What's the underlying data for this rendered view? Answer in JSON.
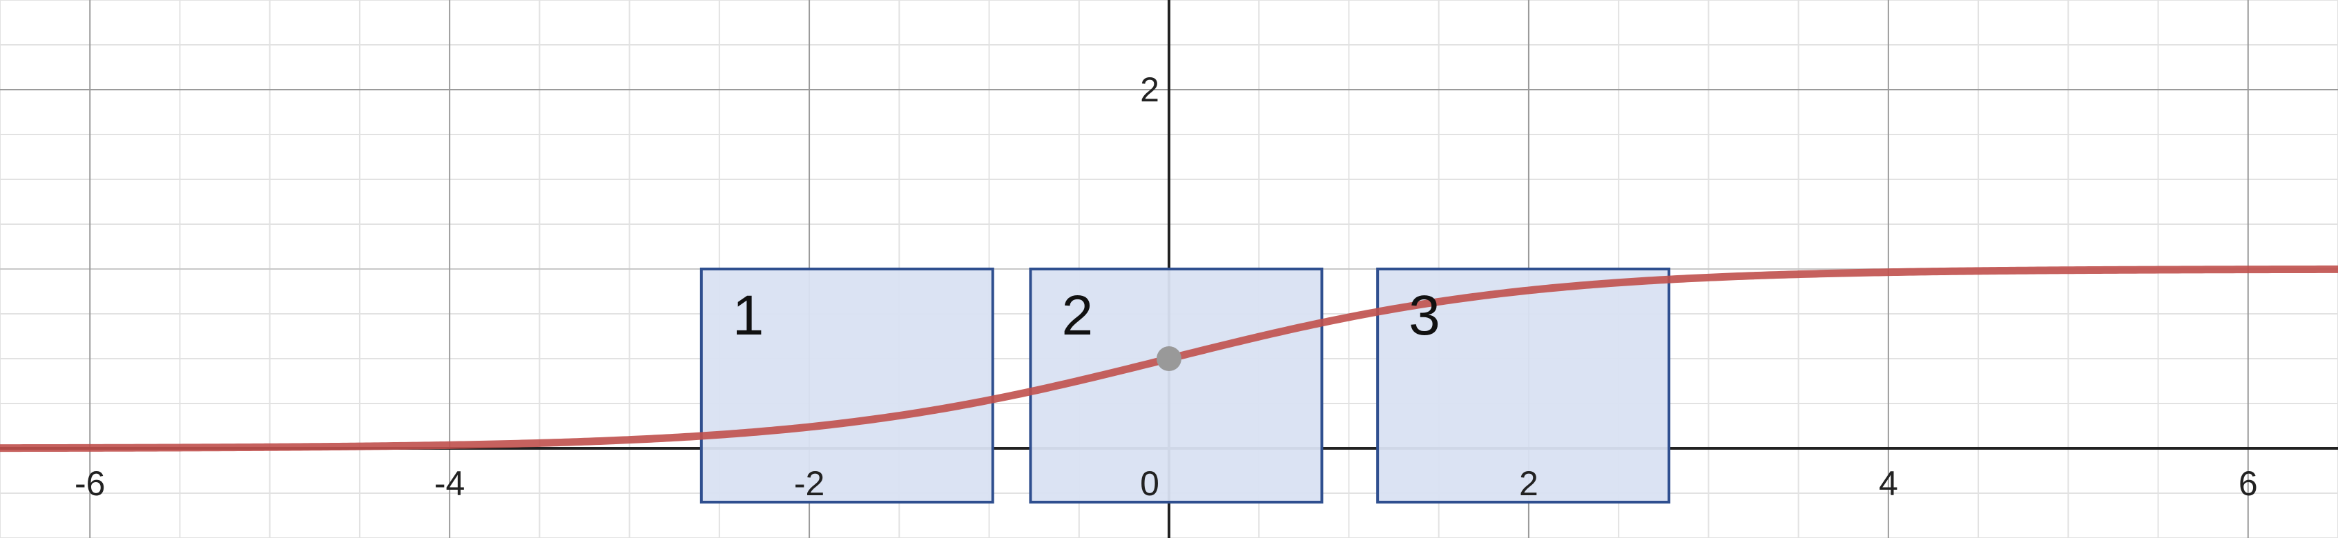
{
  "chart_data": {
    "type": "line",
    "title": "",
    "xlabel": "",
    "ylabel": "",
    "xlim": [
      -6.5,
      6.5
    ],
    "ylim": [
      -0.5,
      2.5
    ],
    "grid": true,
    "x_ticks": [
      -6,
      -4,
      -2,
      0,
      2,
      4,
      6
    ],
    "x_tick_labels": [
      "-6",
      "-4",
      "-2",
      "0",
      "2",
      "4",
      "6"
    ],
    "y_ticks": [
      2
    ],
    "y_tick_labels": [
      "2"
    ],
    "curve": {
      "description_values": "logistic curve y = 1/(1+e^-x)",
      "x": [
        -6.5,
        -6,
        -5,
        -4,
        -3,
        -2.5,
        -2,
        -1.5,
        -1,
        -0.5,
        0,
        0.5,
        1,
        1.5,
        2,
        2.5,
        3,
        4,
        5,
        6,
        6.5
      ],
      "y": [
        0.0015,
        0.0025,
        0.0067,
        0.018,
        0.047,
        0.076,
        0.119,
        0.182,
        0.269,
        0.378,
        0.5,
        0.622,
        0.731,
        0.818,
        0.881,
        0.924,
        0.953,
        0.982,
        0.993,
        0.9975,
        0.9985
      ],
      "color": "#c0504d"
    },
    "point": {
      "x": 0,
      "y": 0.5,
      "color": "#999999"
    },
    "boxes": [
      {
        "label": "1",
        "x0": -2.6,
        "x1": -0.98,
        "y0": -0.3,
        "y1": 1.0
      },
      {
        "label": "2",
        "x0": -0.77,
        "x1": 0.85,
        "y0": -0.3,
        "y1": 1.0
      },
      {
        "label": "3",
        "x0": 1.16,
        "x1": 2.78,
        "y0": -0.3,
        "y1": 1.0
      }
    ],
    "box_fill": "#d9e1f2",
    "box_stroke": "#2f4f8f"
  }
}
